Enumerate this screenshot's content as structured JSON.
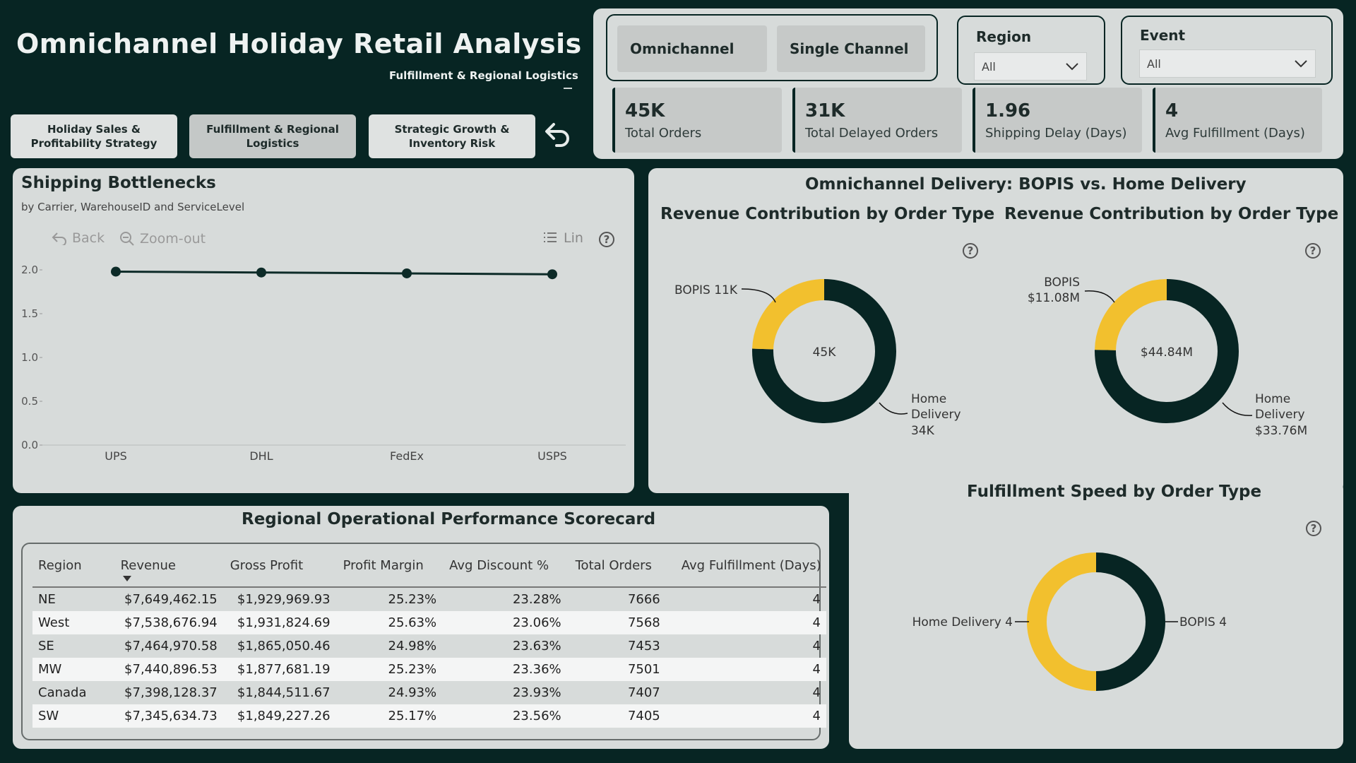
{
  "header": {
    "title": "Omnichannel Holiday Retail Analysis",
    "subtitle": "Fulfillment & Regional Logistics"
  },
  "nav": {
    "btn1": "Holiday Sales & Profitability Strategy",
    "btn2": "Fulfillment & Regional Logistics",
    "btn3": "Strategic Growth & Inventory Risk"
  },
  "channel_toggle": {
    "omni": "Omnichannel",
    "single": "Single Channel"
  },
  "slicers": {
    "region": {
      "label": "Region",
      "value": "All"
    },
    "event": {
      "label": "Event",
      "value": "All"
    }
  },
  "kpis": [
    {
      "value": "45K",
      "label": "Total Orders"
    },
    {
      "value": "31K",
      "label": "Total Delayed Orders"
    },
    {
      "value": "1.96",
      "label": "Shipping Delay (Days)"
    },
    {
      "value": "4",
      "label": "Avg Fulfillment (Days)"
    }
  ],
  "shipping": {
    "title": "Shipping Bottlenecks",
    "subtitle": "by Carrier, WarehouseID and ServiceLevel",
    "back": "Back",
    "zoom_out": "Zoom-out",
    "lin": "Lin",
    "chart_data": {
      "type": "line",
      "categories": [
        "UPS",
        "DHL",
        "FedEx",
        "USPS"
      ],
      "values": [
        1.98,
        1.97,
        1.96,
        1.95
      ],
      "ylim": [
        0,
        2.0
      ],
      "yticks": [
        "2.0",
        "1.5",
        "1.0",
        "0.5",
        "0.0"
      ],
      "color": "#0d2b28"
    }
  },
  "delivery": {
    "title": "Omnichannel Delivery: BOPIS vs. Home Delivery",
    "donut1": {
      "title": "Revenue Contribution by Order Type",
      "center": "45K",
      "label_bopis": "BOPIS 11K",
      "label_home_1": "Home",
      "label_home_2": "Delivery",
      "label_home_3": "34K",
      "chart_data": {
        "type": "pie",
        "categories": [
          "BOPIS",
          "Home Delivery"
        ],
        "values": [
          11,
          34
        ]
      }
    },
    "donut2": {
      "title": "Revenue Contribution by Order Type",
      "center": "$44.84M",
      "label_bopis_1": "BOPIS",
      "label_bopis_2": "$11.08M",
      "label_home_1": "Home",
      "label_home_2": "Delivery",
      "label_home_3": "$33.76M",
      "chart_data": {
        "type": "pie",
        "categories": [
          "BOPIS",
          "Home Delivery"
        ],
        "values": [
          11.08,
          33.76
        ]
      }
    },
    "donut3": {
      "title": "Fulfillment Speed by Order Type",
      "label_home": "Home Delivery 4",
      "label_bopis": "BOPIS 4",
      "chart_data": {
        "type": "pie",
        "categories": [
          "Home Delivery",
          "BOPIS"
        ],
        "values": [
          4,
          4
        ]
      }
    },
    "colors": {
      "bopis": "#f2c02e",
      "home": "#072523"
    }
  },
  "scorecard": {
    "title": "Regional Operational Performance Scorecard",
    "columns": [
      "Region",
      "Revenue",
      "Gross Profit",
      "Profit Margin",
      "Avg Discount %",
      "Total Orders",
      "Avg Fulfillment (Days)"
    ],
    "rows": [
      [
        "NE",
        "$7,649,462.15",
        "$1,929,969.93",
        "25.23%",
        "23.28%",
        "7666",
        "4"
      ],
      [
        "West",
        "$7,538,676.94",
        "$1,931,824.69",
        "25.63%",
        "23.06%",
        "7568",
        "4"
      ],
      [
        "SE",
        "$7,464,970.58",
        "$1,865,050.46",
        "24.98%",
        "23.63%",
        "7453",
        "4"
      ],
      [
        "MW",
        "$7,440,896.53",
        "$1,877,681.19",
        "25.23%",
        "23.36%",
        "7501",
        "4"
      ],
      [
        "Canada",
        "$7,398,128.37",
        "$1,844,511.67",
        "24.93%",
        "23.93%",
        "7407",
        "4"
      ],
      [
        "SW",
        "$7,345,634.73",
        "$1,849,227.26",
        "25.17%",
        "23.56%",
        "7405",
        "4"
      ]
    ]
  }
}
